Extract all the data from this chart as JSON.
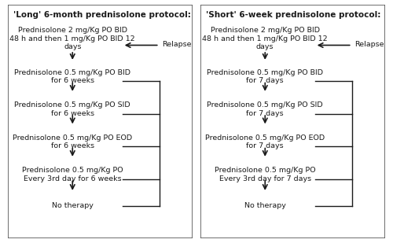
{
  "title_left": "'Long' 6-month prednisolone protocol:",
  "title_right": "'Short' 6-week prednisolone protocol:",
  "left_steps": [
    "Prednisolone 2 mg/Kg PO BID\n48 h and then 1 mg/Kg PO BID 12\ndays",
    "Prednisolone 0.5 mg/Kg PO BID\nfor 6 weeks",
    "Prednisolone 0.5 mg/Kg PO SID\nfor 6 weeks",
    "Prednisolone 0.5 mg/Kg PO EOD\nfor 6 weeks",
    "Prednisolone 0.5 mg/Kg PO\nEvery 3rd day for 6 weeks",
    "No therapy"
  ],
  "right_steps": [
    "Prednisolone 2 mg/Kg PO BID\n48 h and then 1 mg/Kg PO BID 12\ndays",
    "Prednisolone 0.5 mg/Kg PO BID\nfor 7 days",
    "Prednisolone 0.5 mg/Kg PO SID\nfor 7 days",
    "Prednisolone 0.5 mg/Kg PO EOD\nfor 7 days",
    "Prednisolone 0.5 mg/Kg PO\nEvery 3rd day for 7 days",
    "No therapy"
  ],
  "relapse_label": "Relapse",
  "bg_color": "#ffffff",
  "text_color": "#1a1a1a",
  "border_color": "#555555",
  "fontsize": 6.8,
  "title_fontsize": 7.5
}
